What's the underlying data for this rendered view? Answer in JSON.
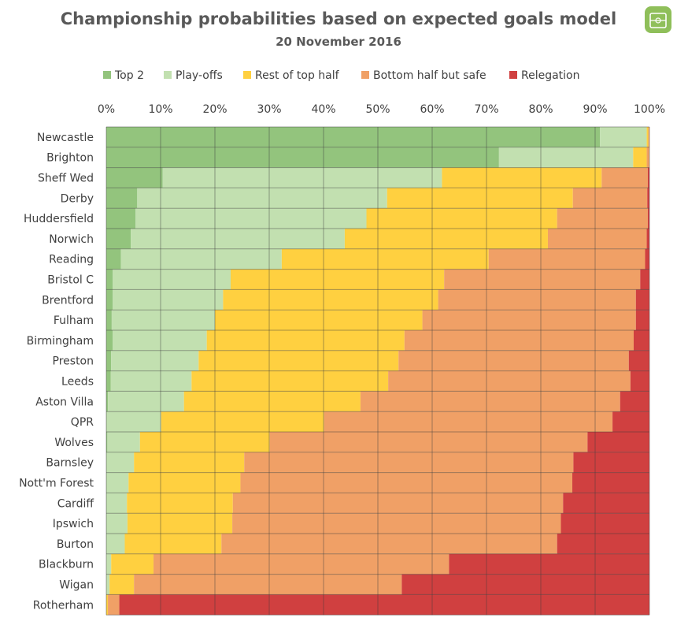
{
  "chart_data": {
    "type": "bar",
    "orientation": "horizontal",
    "stacked": "percent",
    "title": "Championship probabilities based on expected goals model",
    "subtitle": "20 November 2016",
    "xlim": [
      0,
      100
    ],
    "x_ticks": [
      "0%",
      "10%",
      "20%",
      "30%",
      "40%",
      "50%",
      "60%",
      "70%",
      "80%",
      "90%",
      "100%"
    ],
    "grid": true,
    "legend_position": "top",
    "categories": [
      "Newcastle",
      "Brighton",
      "Sheff Wed",
      "Derby",
      "Huddersfield",
      "Norwich",
      "Reading",
      "Bristol C",
      "Brentford",
      "Fulham",
      "Birmingham",
      "Preston",
      "Leeds",
      "Aston Villa",
      "QPR",
      "Wolves",
      "Barnsley",
      "Nott'm Forest",
      "Cardiff",
      "Ipswich",
      "Burton",
      "Blackburn",
      "Wigan",
      "Rotherham"
    ],
    "series": [
      {
        "name": "Top 2",
        "color": "#93c47d",
        "values": [
          90.9,
          72.3,
          10.4,
          5.7,
          5.4,
          4.5,
          2.7,
          1.2,
          1.2,
          1.0,
          1.2,
          0.9,
          0.8,
          0.3,
          0.1,
          0.2,
          0.1,
          0.1,
          0.1,
          0.1,
          0.1,
          0.0,
          0.0,
          0.0
        ]
      },
      {
        "name": "Play-offs",
        "color": "#c2e0b0",
        "values": [
          8.6,
          24.7,
          51.4,
          46.0,
          42.5,
          39.4,
          29.6,
          21.7,
          20.3,
          19.0,
          17.3,
          16.1,
          14.9,
          14.0,
          10.0,
          6.0,
          5.0,
          4.0,
          3.7,
          3.8,
          3.3,
          0.9,
          0.6,
          0.0
        ]
      },
      {
        "name": "Rest of top half",
        "color": "#ffd040",
        "values": [
          0.3,
          2.5,
          29.4,
          34.2,
          35.1,
          37.4,
          38.1,
          39.3,
          39.6,
          38.2,
          36.4,
          36.8,
          36.2,
          32.5,
          30.0,
          23.9,
          20.3,
          20.6,
          19.5,
          19.3,
          17.8,
          7.8,
          4.5,
          0.3
        ]
      },
      {
        "name": "Bottom half but safe",
        "color": "#f0a066",
        "values": [
          0.2,
          0.5,
          8.5,
          13.7,
          16.7,
          18.2,
          28.8,
          36.1,
          36.4,
          39.3,
          42.2,
          42.4,
          44.6,
          47.8,
          53.1,
          58.5,
          60.6,
          61.1,
          60.8,
          60.5,
          61.8,
          54.4,
          49.3,
          2.1
        ]
      },
      {
        "name": "Relegation",
        "color": "#d04040",
        "values": [
          0.0,
          0.0,
          0.3,
          0.4,
          0.3,
          0.5,
          0.8,
          1.7,
          2.5,
          2.5,
          2.9,
          3.8,
          3.5,
          5.4,
          6.8,
          11.4,
          14.0,
          14.2,
          15.9,
          16.3,
          17.0,
          36.9,
          45.6,
          97.6
        ]
      }
    ]
  }
}
